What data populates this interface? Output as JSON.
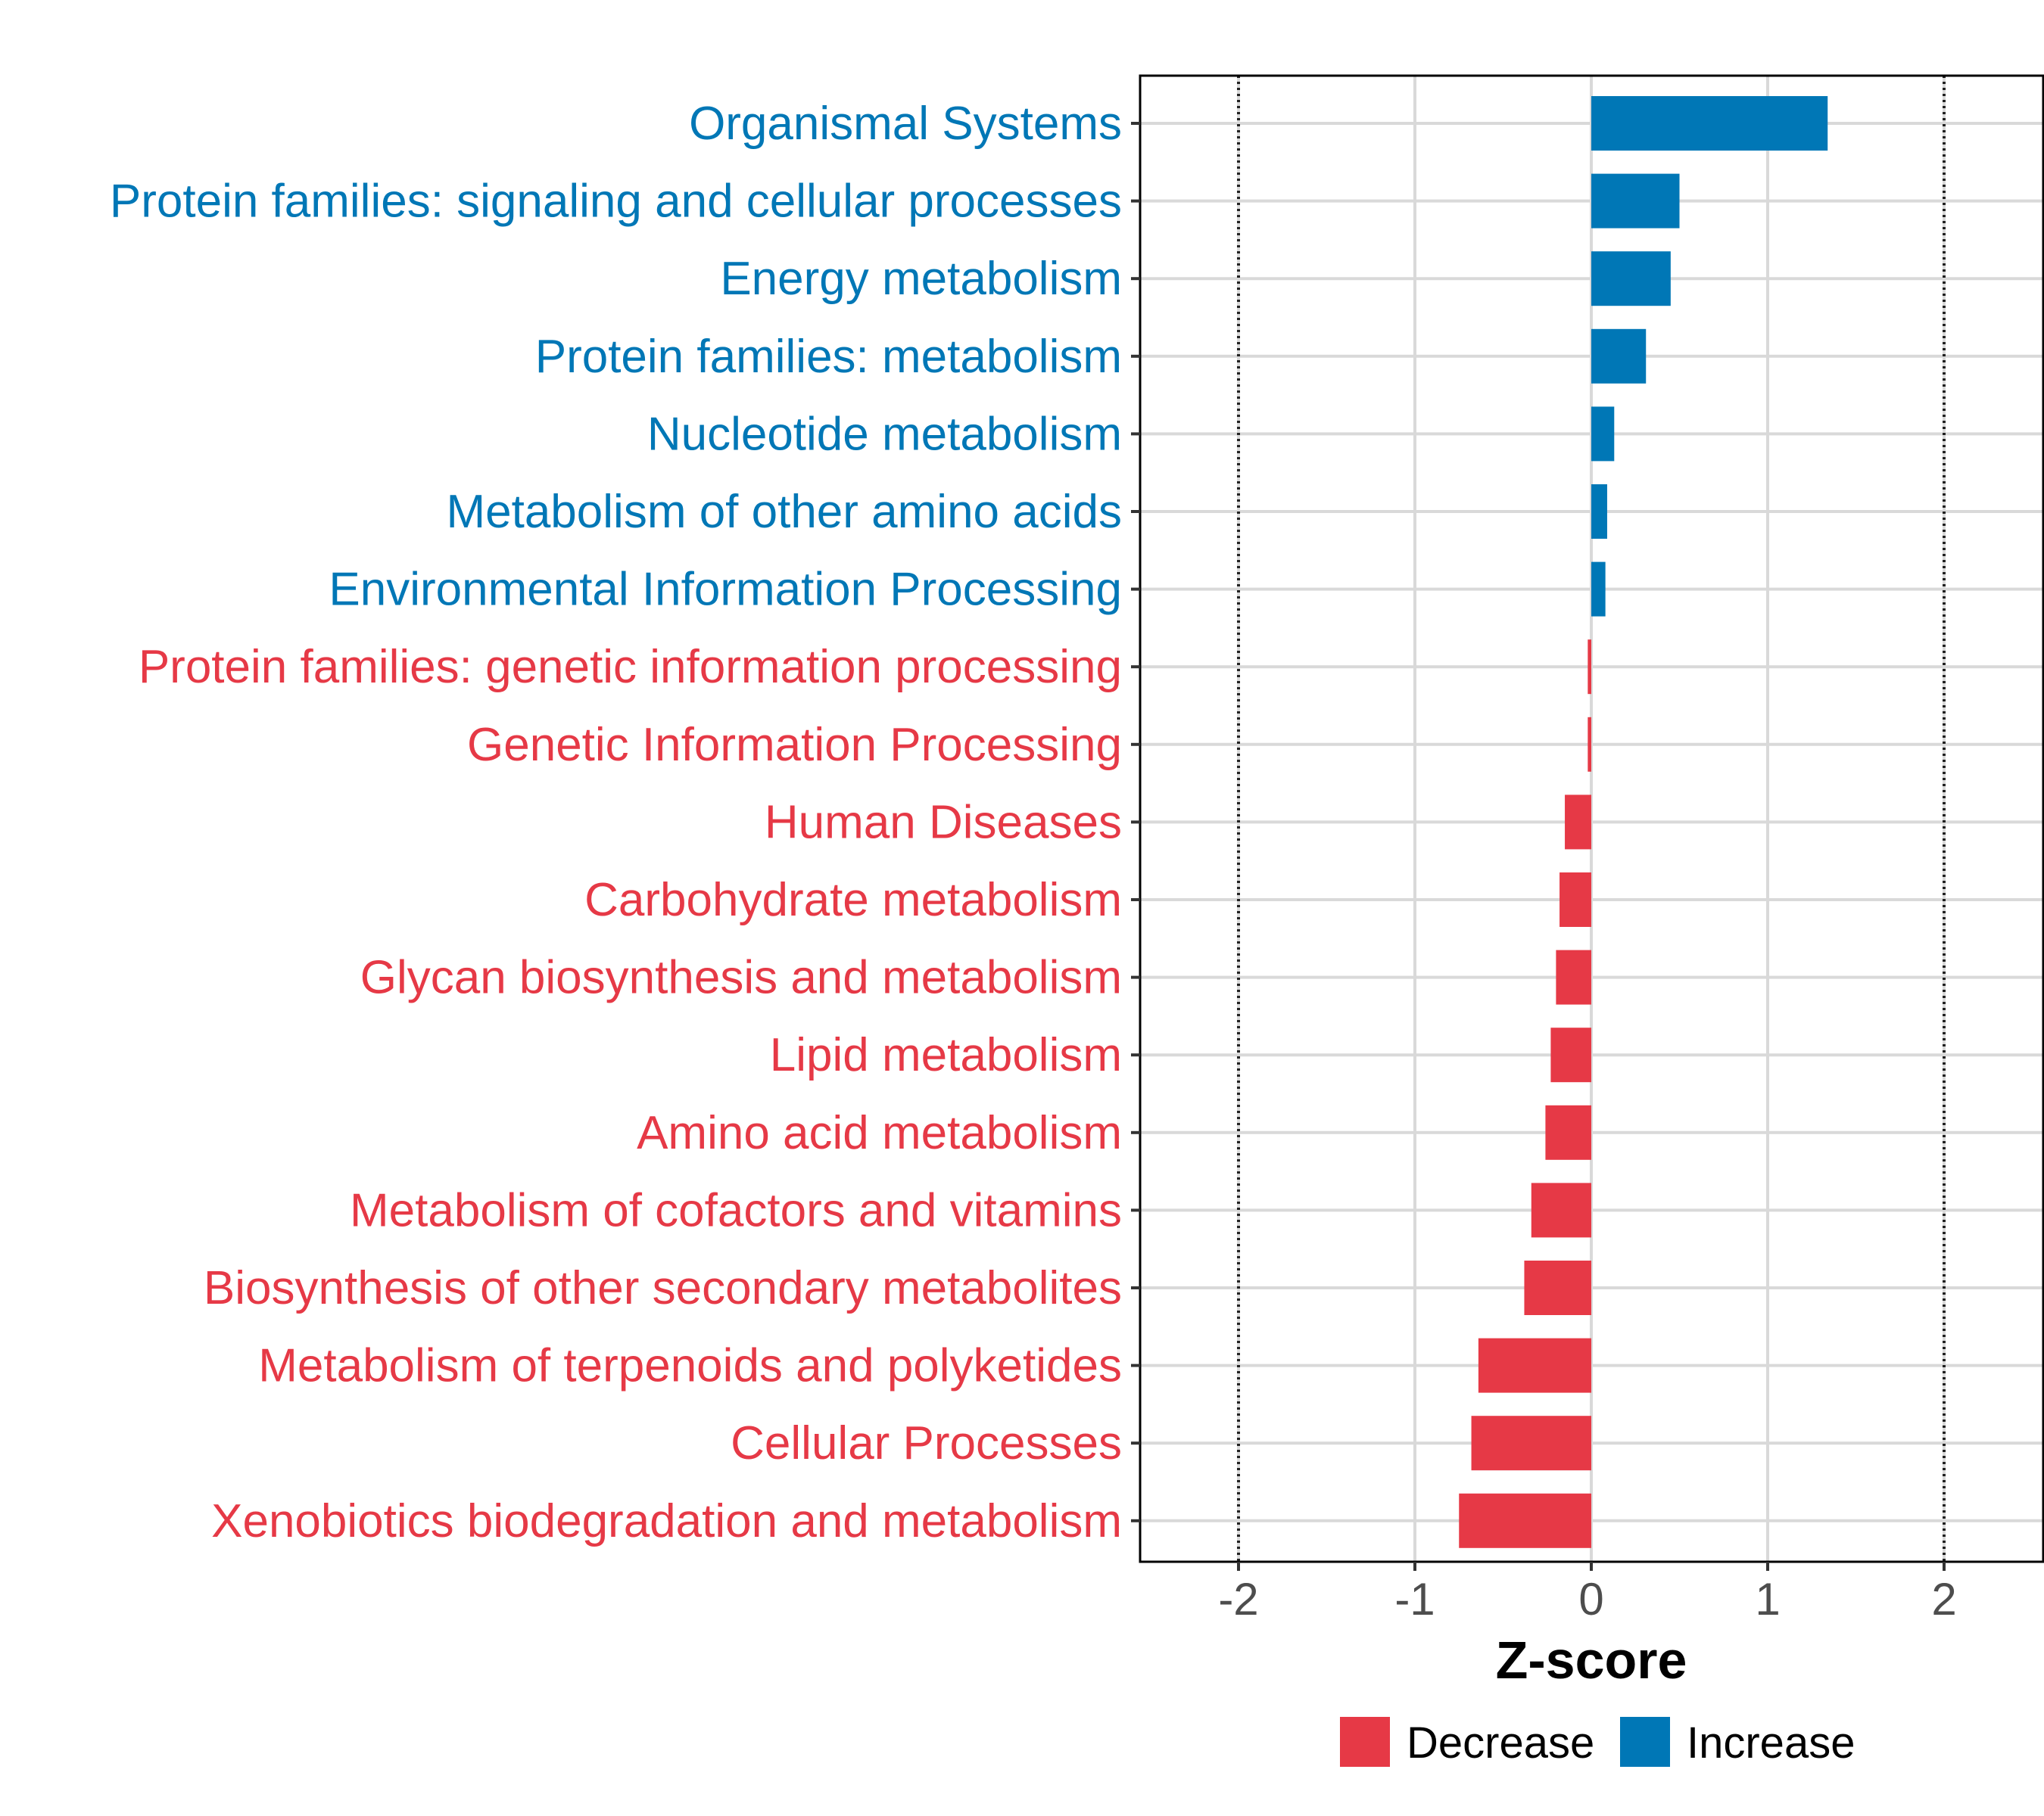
{
  "chart_data": {
    "type": "bar",
    "orientation": "horizontal",
    "title": "",
    "xlabel": "Z-score",
    "ylabel": "",
    "xlim": [
      -2.5,
      2.6
    ],
    "xticks": [
      {
        "value": -2,
        "label": "-2"
      },
      {
        "value": -1,
        "label": "-1"
      },
      {
        "value": 0,
        "label": "0"
      },
      {
        "value": 1,
        "label": "1"
      },
      {
        "value": 2,
        "label": "2"
      }
    ],
    "reference_lines": [
      -2,
      2
    ],
    "grid": true,
    "legend_position": "bottom",
    "legend": [
      {
        "key": "decrease",
        "label": "Decrease",
        "color": "#e63946"
      },
      {
        "key": "increase",
        "label": "Increase",
        "color": "#0077b6"
      }
    ],
    "categories": [
      "Organismal Systems",
      "Protein families: signaling and cellular processes",
      "Energy metabolism",
      "Protein families: metabolism",
      "Nucleotide metabolism",
      "Metabolism of other amino acids",
      "Environmental Information Processing",
      "Protein families: genetic information processing",
      "Genetic Information Processing",
      "Human Diseases",
      "Carbohydrate metabolism",
      "Glycan biosynthesis and metabolism",
      "Lipid metabolism",
      "Amino acid metabolism",
      "Metabolism of cofactors and vitamins",
      "Biosynthesis of other secondary metabolites",
      "Metabolism of terpenoids and polyketides",
      "Cellular Processes",
      "Xenobiotics biodegradation and metabolism"
    ],
    "values": [
      1.34,
      0.5,
      0.45,
      0.31,
      0.13,
      0.09,
      0.08,
      -0.02,
      -0.02,
      -0.15,
      -0.18,
      -0.2,
      -0.23,
      -0.26,
      -0.34,
      -0.38,
      -0.64,
      -0.68,
      -0.75
    ],
    "groups": [
      "increase",
      "increase",
      "increase",
      "increase",
      "increase",
      "increase",
      "increase",
      "decrease",
      "decrease",
      "decrease",
      "decrease",
      "decrease",
      "decrease",
      "decrease",
      "decrease",
      "decrease",
      "decrease",
      "decrease",
      "decrease"
    ]
  }
}
